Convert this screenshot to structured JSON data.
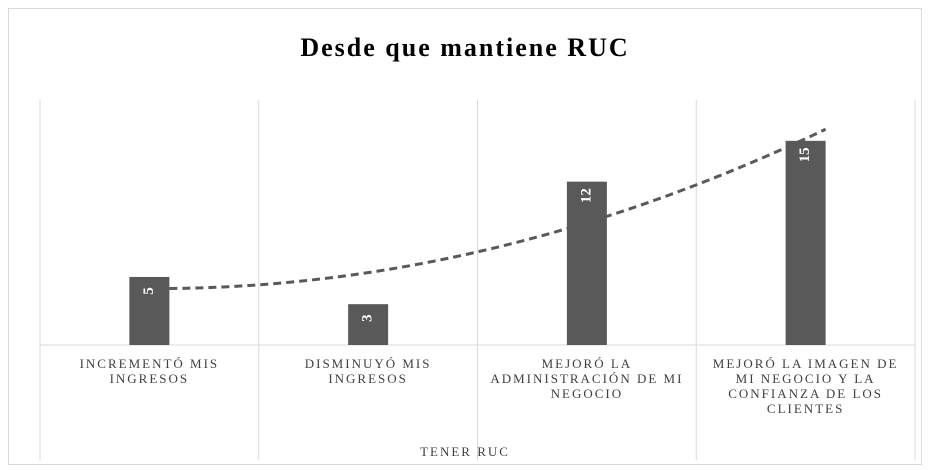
{
  "chart_data": {
    "type": "bar",
    "title": "Desde que mantiene RUC",
    "categories": [
      "INCREMENTÓ MIS INGRESOS",
      "DISMINUYÓ MIS INGRESOS",
      "MEJORÓ LA ADMINISTRACIÓN DE MI NEGOCIO",
      "MEJORÓ LA IMAGEN DE MI NEGOCIO Y LA CONFIANZA DE LOS CLIENTES"
    ],
    "values": [
      5,
      3,
      12,
      15
    ],
    "color": "#595959",
    "x_label": "TENER RUC",
    "ylim": [
      0,
      18
    ],
    "trendline": {
      "type": "polynomial",
      "order": 2,
      "color": "#595959"
    },
    "grid": true
  }
}
